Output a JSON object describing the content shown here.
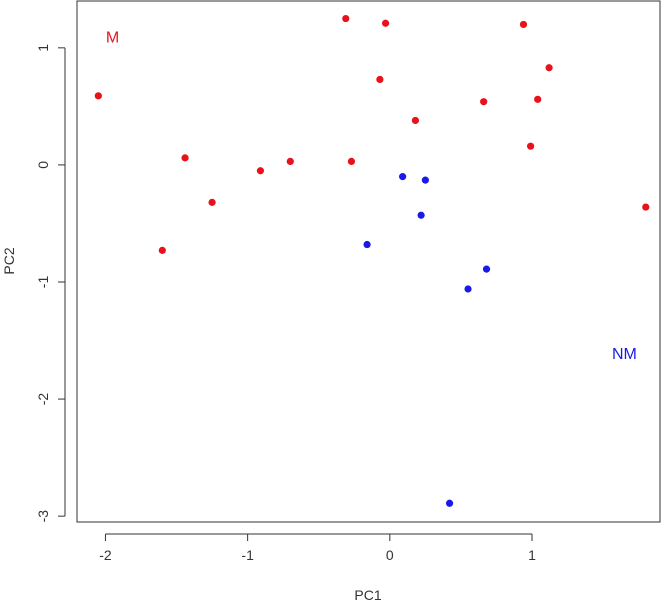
{
  "chart_data": {
    "type": "scatter",
    "xlabel": "PC1",
    "ylabel": "PC2",
    "xlim": [
      -2.2,
      1.9
    ],
    "ylim": [
      -3.05,
      1.4
    ],
    "xticks": [
      -2,
      -1,
      0,
      1
    ],
    "yticks": [
      -3,
      -2,
      -1,
      0,
      1
    ],
    "grid": false,
    "series": [
      {
        "name": "M",
        "color": "#e8121b",
        "points": [
          {
            "x": -2.05,
            "y": 0.59
          },
          {
            "x": -1.6,
            "y": -0.73
          },
          {
            "x": -1.44,
            "y": 0.06
          },
          {
            "x": -1.25,
            "y": -0.32
          },
          {
            "x": -0.91,
            "y": -0.05
          },
          {
            "x": -0.7,
            "y": 0.03
          },
          {
            "x": -0.31,
            "y": 1.25
          },
          {
            "x": -0.27,
            "y": 0.03
          },
          {
            "x": -0.07,
            "y": 0.73
          },
          {
            "x": -0.03,
            "y": 1.21
          },
          {
            "x": 0.18,
            "y": 0.38
          },
          {
            "x": 0.66,
            "y": 0.54
          },
          {
            "x": 0.94,
            "y": 1.2
          },
          {
            "x": 0.99,
            "y": 0.16
          },
          {
            "x": 1.04,
            "y": 0.56
          },
          {
            "x": 1.12,
            "y": 0.83
          },
          {
            "x": 1.8,
            "y": -0.36
          }
        ]
      },
      {
        "name": "NM",
        "color": "#1a1ae6",
        "points": [
          {
            "x": -0.16,
            "y": -0.68
          },
          {
            "x": 0.09,
            "y": -0.1
          },
          {
            "x": 0.22,
            "y": -0.43
          },
          {
            "x": 0.25,
            "y": -0.13
          },
          {
            "x": 0.55,
            "y": -1.06
          },
          {
            "x": 0.68,
            "y": -0.89
          },
          {
            "x": 0.42,
            "y": -2.89
          }
        ]
      }
    ],
    "annotations": [
      {
        "text": "M",
        "x": -1.95,
        "y": 1.08,
        "color": "#e8121b"
      },
      {
        "text": "NM",
        "x": 1.65,
        "y": -1.62,
        "color": "#1a1ae6"
      }
    ]
  }
}
